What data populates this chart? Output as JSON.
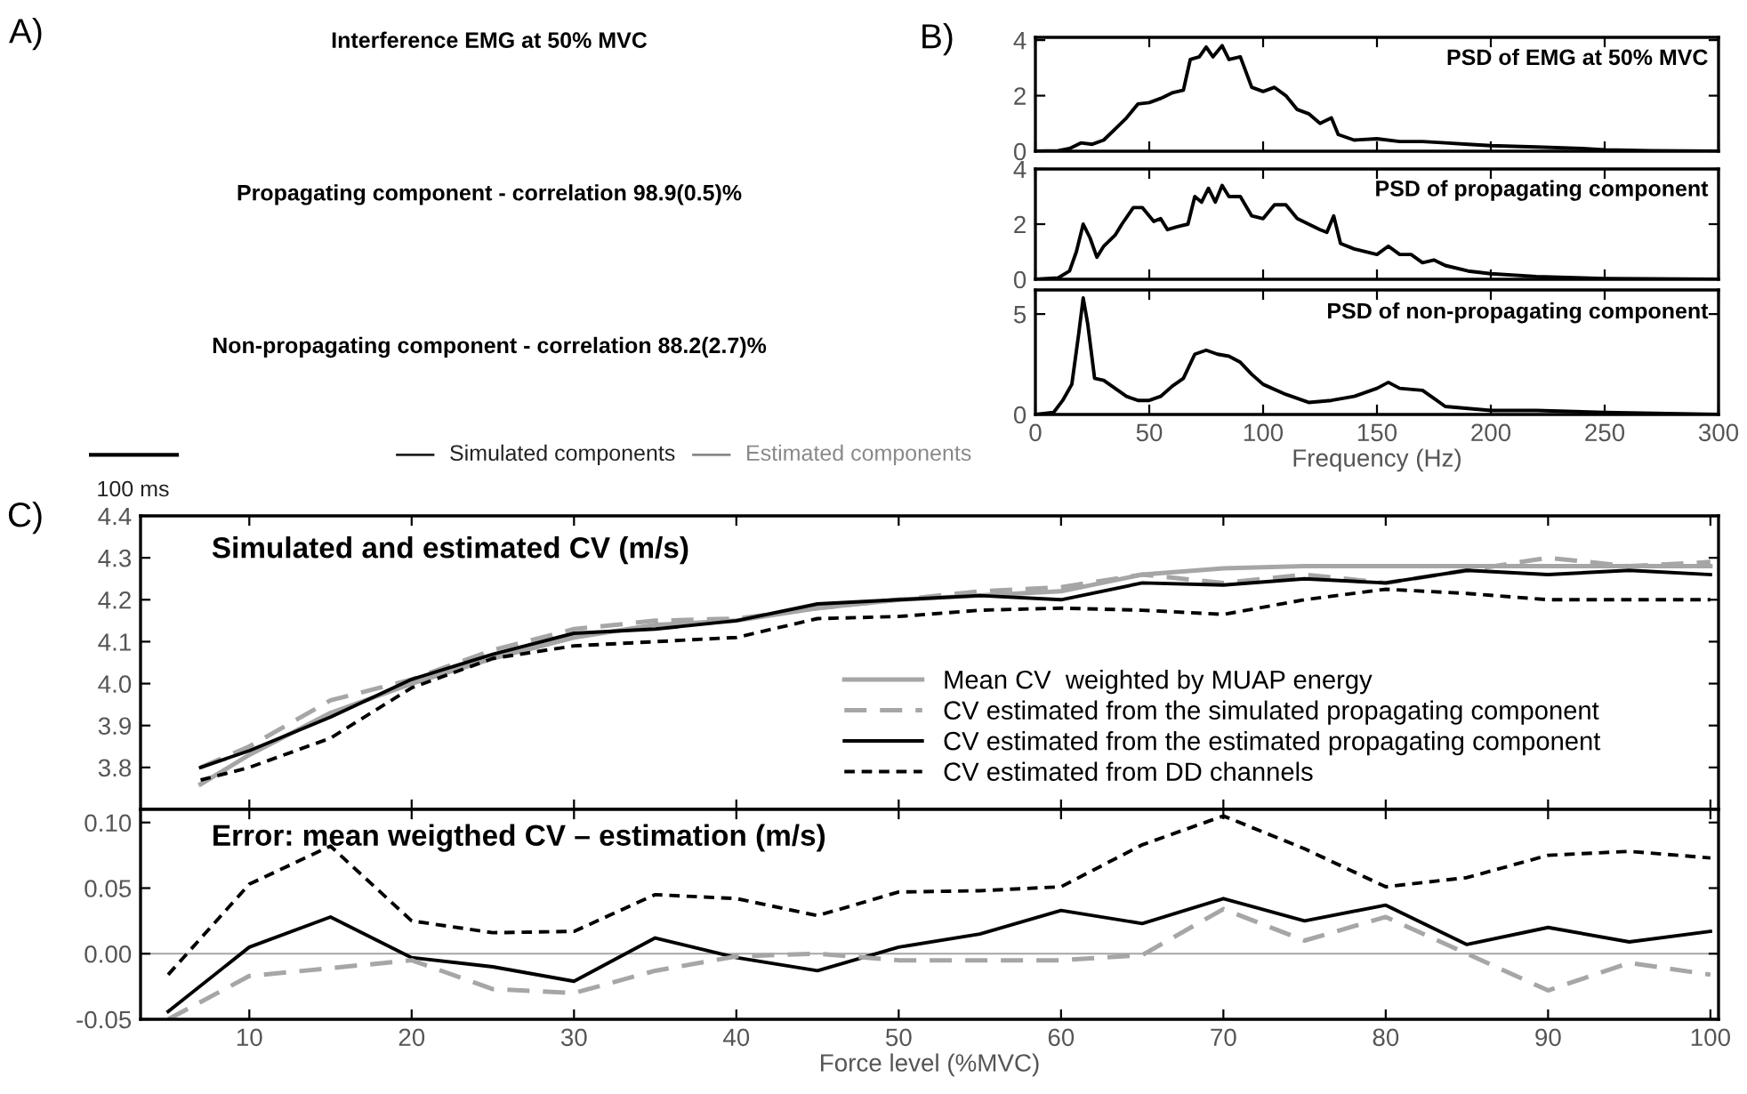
{
  "chart_data": [
    {
      "type": "other",
      "title": "A)",
      "annotations": [
        "Interference EMG at 50% MVC",
        "Propagating component - correlation 98.9(0.5)%",
        "Non-propagating component - correlation 88.2(2.7)%",
        "100 ms",
        "Simulated components",
        "Estimated components"
      ]
    },
    {
      "type": "line",
      "title": "B)",
      "annotations": [
        "PSD of EMG at 50% MVC"
      ],
      "xlim": [
        0,
        300
      ],
      "xticks": [
        0,
        50,
        100,
        150,
        200,
        250,
        300
      ],
      "ylim": [
        0,
        4.1
      ],
      "yticks": [
        0,
        2,
        4
      ],
      "tick_labels": "y",
      "grid": false,
      "legend": false,
      "x": [
        0,
        10,
        15,
        20,
        25,
        30,
        35,
        40,
        45,
        50,
        55,
        60,
        65,
        68,
        72,
        75,
        78,
        82,
        85,
        90,
        95,
        100,
        105,
        110,
        115,
        120,
        125,
        130,
        133,
        140,
        150,
        160,
        170,
        180,
        190,
        200,
        220,
        240,
        250,
        270,
        300
      ],
      "series": [
        {
          "color": "#000000",
          "line_style": "solid",
          "values": [
            0,
            0.02,
            0.1,
            0.3,
            0.25,
            0.4,
            0.8,
            1.2,
            1.7,
            1.75,
            1.9,
            2.1,
            2.2,
            3.3,
            3.4,
            3.75,
            3.4,
            3.8,
            3.3,
            3.4,
            2.3,
            2.15,
            2.3,
            2.0,
            1.5,
            1.35,
            1.0,
            1.2,
            0.6,
            0.4,
            0.45,
            0.35,
            0.35,
            0.3,
            0.25,
            0.2,
            0.15,
            0.1,
            0.05,
            0.02,
            0
          ]
        }
      ]
    },
    {
      "type": "line",
      "annotations": [
        "PSD of propagating component"
      ],
      "xlim": [
        0,
        300
      ],
      "xticks": [
        0,
        50,
        100,
        150,
        200,
        250,
        300
      ],
      "ylim": [
        0,
        4
      ],
      "yticks": [
        0,
        2,
        4
      ],
      "tick_labels": "y",
      "grid": false,
      "legend": false,
      "x": [
        0,
        10,
        15,
        18,
        21,
        24,
        27,
        30,
        35,
        38,
        43,
        47,
        52,
        55,
        58,
        62,
        67,
        70,
        73,
        76,
        79,
        82,
        85,
        90,
        95,
        100,
        105,
        110,
        115,
        120,
        125,
        128,
        131,
        134,
        140,
        150,
        155,
        160,
        165,
        170,
        175,
        180,
        190,
        200,
        220,
        240,
        250,
        300
      ],
      "series": [
        {
          "color": "#000000",
          "line_style": "solid",
          "values": [
            0,
            0.05,
            0.3,
            1.0,
            2.0,
            1.5,
            0.8,
            1.2,
            1.6,
            2.0,
            2.6,
            2.6,
            2.1,
            2.2,
            1.8,
            1.9,
            2.0,
            3.0,
            2.8,
            3.3,
            2.8,
            3.4,
            3.0,
            3.0,
            2.3,
            2.2,
            2.7,
            2.7,
            2.2,
            2.0,
            1.8,
            1.7,
            2.3,
            1.3,
            1.1,
            0.9,
            1.2,
            0.9,
            0.9,
            0.6,
            0.7,
            0.5,
            0.3,
            0.2,
            0.1,
            0.05,
            0.03,
            0
          ]
        }
      ]
    },
    {
      "type": "line",
      "annotations": [
        "PSD of non-propagating component"
      ],
      "xlabel": "Frequency (Hz)",
      "xlim": [
        0,
        300
      ],
      "xticks": [
        0,
        50,
        100,
        150,
        200,
        250,
        300
      ],
      "ylim": [
        0,
        6.2
      ],
      "yticks": [
        0,
        5
      ],
      "grid": false,
      "legend": false,
      "x": [
        0,
        8,
        12,
        16,
        19,
        21,
        23,
        26,
        30,
        35,
        40,
        45,
        50,
        55,
        60,
        65,
        70,
        75,
        80,
        85,
        90,
        95,
        100,
        110,
        120,
        130,
        140,
        150,
        155,
        160,
        170,
        175,
        180,
        200,
        220,
        250,
        300
      ],
      "series": [
        {
          "color": "#000000",
          "line_style": "solid",
          "values": [
            0,
            0.1,
            0.7,
            1.5,
            4.0,
            5.8,
            4.5,
            1.8,
            1.7,
            1.3,
            0.9,
            0.7,
            0.7,
            0.9,
            1.4,
            1.8,
            3.0,
            3.2,
            3.0,
            2.9,
            2.6,
            2.0,
            1.5,
            1.0,
            0.6,
            0.7,
            0.9,
            1.3,
            1.6,
            1.3,
            1.2,
            0.8,
            0.4,
            0.2,
            0.2,
            0.1,
            0
          ]
        }
      ]
    },
    {
      "type": "line",
      "title": "C)",
      "annotations": [
        "Simulated and estimated CV (m/s)"
      ],
      "xlim": [
        3.3,
        100.5
      ],
      "xticks": [
        10,
        20,
        30,
        40,
        50,
        60,
        70,
        80,
        90,
        100
      ],
      "ylim": [
        3.7,
        4.4
      ],
      "yticks": [
        3.8,
        3.9,
        {
          "value": 4,
          "label": "4.0"
        },
        4.1,
        4.2,
        4.3,
        4.4
      ],
      "tick_labels": "y",
      "grid": false,
      "legend": "bottom right",
      "x": [
        7,
        10,
        15,
        20,
        25,
        30,
        35,
        40,
        45,
        50,
        55,
        60,
        65,
        70,
        75,
        80,
        85,
        90,
        95,
        100
      ],
      "series": [
        {
          "name": "Mean CV  weighted by MUAP energy",
          "color": "#a6a6a6",
          "line_style": "solid",
          "values": [
            3.76,
            3.83,
            3.93,
            4.0,
            4.06,
            4.11,
            4.14,
            4.15,
            4.18,
            4.2,
            4.21,
            4.22,
            4.26,
            4.275,
            4.28,
            4.28,
            4.28,
            4.28,
            4.28,
            4.28
          ]
        },
        {
          "name": "CV estimated from the simulated propagating component",
          "color": "#a6a6a6",
          "line_style": "dashed",
          "values": [
            3.8,
            3.85,
            3.96,
            4.01,
            4.08,
            4.13,
            4.15,
            4.155,
            4.18,
            4.2,
            4.22,
            4.23,
            4.26,
            4.24,
            4.26,
            4.24,
            4.27,
            4.3,
            4.28,
            4.29
          ]
        },
        {
          "name": "CV estimated from the estimated propagating component",
          "color": "#000000",
          "line_style": "solid",
          "values": [
            3.8,
            3.84,
            3.92,
            4.01,
            4.07,
            4.12,
            4.13,
            4.15,
            4.19,
            4.2,
            4.21,
            4.2,
            4.24,
            4.235,
            4.25,
            4.24,
            4.27,
            4.26,
            4.27,
            4.26
          ]
        },
        {
          "name": "CV estimated from DD channels",
          "color": "#000000",
          "line_style": "dotted",
          "values": [
            3.77,
            3.8,
            3.87,
            3.99,
            4.06,
            4.09,
            4.1,
            4.11,
            4.155,
            4.16,
            4.175,
            4.18,
            4.175,
            4.165,
            4.2,
            4.225,
            4.215,
            4.2,
            4.2,
            4.2
          ]
        }
      ]
    },
    {
      "type": "line",
      "annotations": [
        "Error: mean weigthed CV – estimation (m/s)"
      ],
      "xlabel": "Force level (%MVC)",
      "xlim": [
        3.3,
        100.5
      ],
      "xticks": [
        10,
        20,
        30,
        40,
        50,
        60,
        70,
        80,
        90,
        100
      ],
      "ylim": [
        -0.05,
        0.11
      ],
      "yticks": [
        {
          "value": -0.05,
          "label": "-0.05"
        },
        {
          "value": 0,
          "label": "0.00"
        },
        {
          "value": 0.05,
          "label": "0.05"
        },
        {
          "value": 0.1,
          "label": "0.10"
        }
      ],
      "grid": false,
      "legend": false,
      "ref_lines": [
        {
          "axis": "y",
          "value": 0,
          "color": "#a6a6a6",
          "line_style": "solid"
        }
      ],
      "x": [
        5,
        10,
        15,
        20,
        25,
        30,
        35,
        40,
        45,
        50,
        55,
        60,
        65,
        70,
        75,
        80,
        85,
        90,
        95,
        100
      ],
      "series": [
        {
          "color": "#000000",
          "line_style": "dotted",
          "values": [
            -0.016,
            0.053,
            0.082,
            0.025,
            0.016,
            0.017,
            0.045,
            0.042,
            0.029,
            0.047,
            0.048,
            0.051,
            0.083,
            0.105,
            0.08,
            0.051,
            0.058,
            0.075,
            0.078,
            0.073
          ]
        },
        {
          "color": "#000000",
          "line_style": "solid",
          "values": [
            -0.044,
            0.005,
            0.028,
            -0.003,
            -0.01,
            -0.021,
            0.012,
            -0.003,
            -0.013,
            0.005,
            0.015,
            0.033,
            0.023,
            0.042,
            0.025,
            0.037,
            0.007,
            0.02,
            0.009,
            0.017
          ]
        },
        {
          "color": "#a6a6a6",
          "line_style": "dashed",
          "values": [
            -0.05,
            -0.017,
            -0.011,
            -0.005,
            -0.027,
            -0.03,
            -0.013,
            -0.002,
            0.0,
            -0.005,
            -0.005,
            -0.005,
            -0.001,
            0.034,
            0.01,
            0.028,
            0.0,
            -0.028,
            -0.007,
            -0.016
          ]
        }
      ]
    }
  ]
}
